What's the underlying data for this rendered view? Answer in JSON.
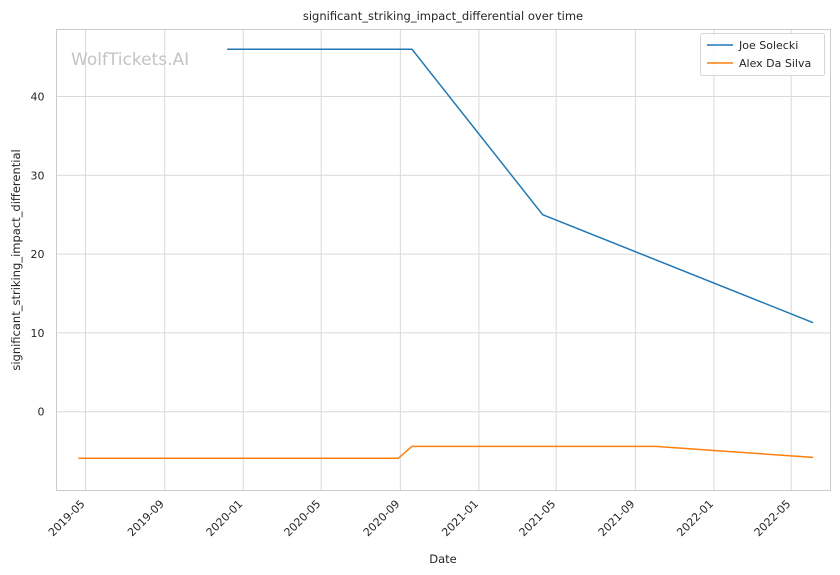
{
  "chart_data": {
    "type": "line",
    "title": "significant_striking_impact_differential over time",
    "xlabel": "Date",
    "ylabel": "significant_striking_impact_differential",
    "watermark": "WolfTickets.AI",
    "x_type": "date",
    "xlim": [
      "2019-03-17",
      "2022-07-01"
    ],
    "ylim": [
      -10,
      48.5
    ],
    "x_ticks": [
      {
        "date": "2019-05-01",
        "label": "2019-05"
      },
      {
        "date": "2019-09-01",
        "label": "2019-09"
      },
      {
        "date": "2020-01-01",
        "label": "2020-01"
      },
      {
        "date": "2020-05-01",
        "label": "2020-05"
      },
      {
        "date": "2020-09-01",
        "label": "2020-09"
      },
      {
        "date": "2021-01-01",
        "label": "2021-01"
      },
      {
        "date": "2021-05-01",
        "label": "2021-05"
      },
      {
        "date": "2021-09-01",
        "label": "2021-09"
      },
      {
        "date": "2022-01-01",
        "label": "2022-01"
      },
      {
        "date": "2022-05-01",
        "label": "2022-05"
      }
    ],
    "y_ticks": [
      0,
      10,
      20,
      30,
      40
    ],
    "grid": true,
    "legend_position": "top-right",
    "series": [
      {
        "name": "Joe Solecki",
        "color": "#1f77b4",
        "points": [
          {
            "x": "2019-12-07",
            "y": 46
          },
          {
            "x": "2020-09-19",
            "y": 46
          },
          {
            "x": "2021-04-10",
            "y": 25
          },
          {
            "x": "2022-06-04",
            "y": 11.3
          }
        ]
      },
      {
        "name": "Alex Da Silva",
        "color": "#ff7f0e",
        "points": [
          {
            "x": "2019-04-20",
            "y": -5.9
          },
          {
            "x": "2020-08-29",
            "y": -5.9
          },
          {
            "x": "2020-09-19",
            "y": -4.4
          },
          {
            "x": "2021-10-02",
            "y": -4.4
          },
          {
            "x": "2022-01-15",
            "y": -5
          },
          {
            "x": "2022-06-04",
            "y": -5.8
          }
        ]
      }
    ]
  }
}
